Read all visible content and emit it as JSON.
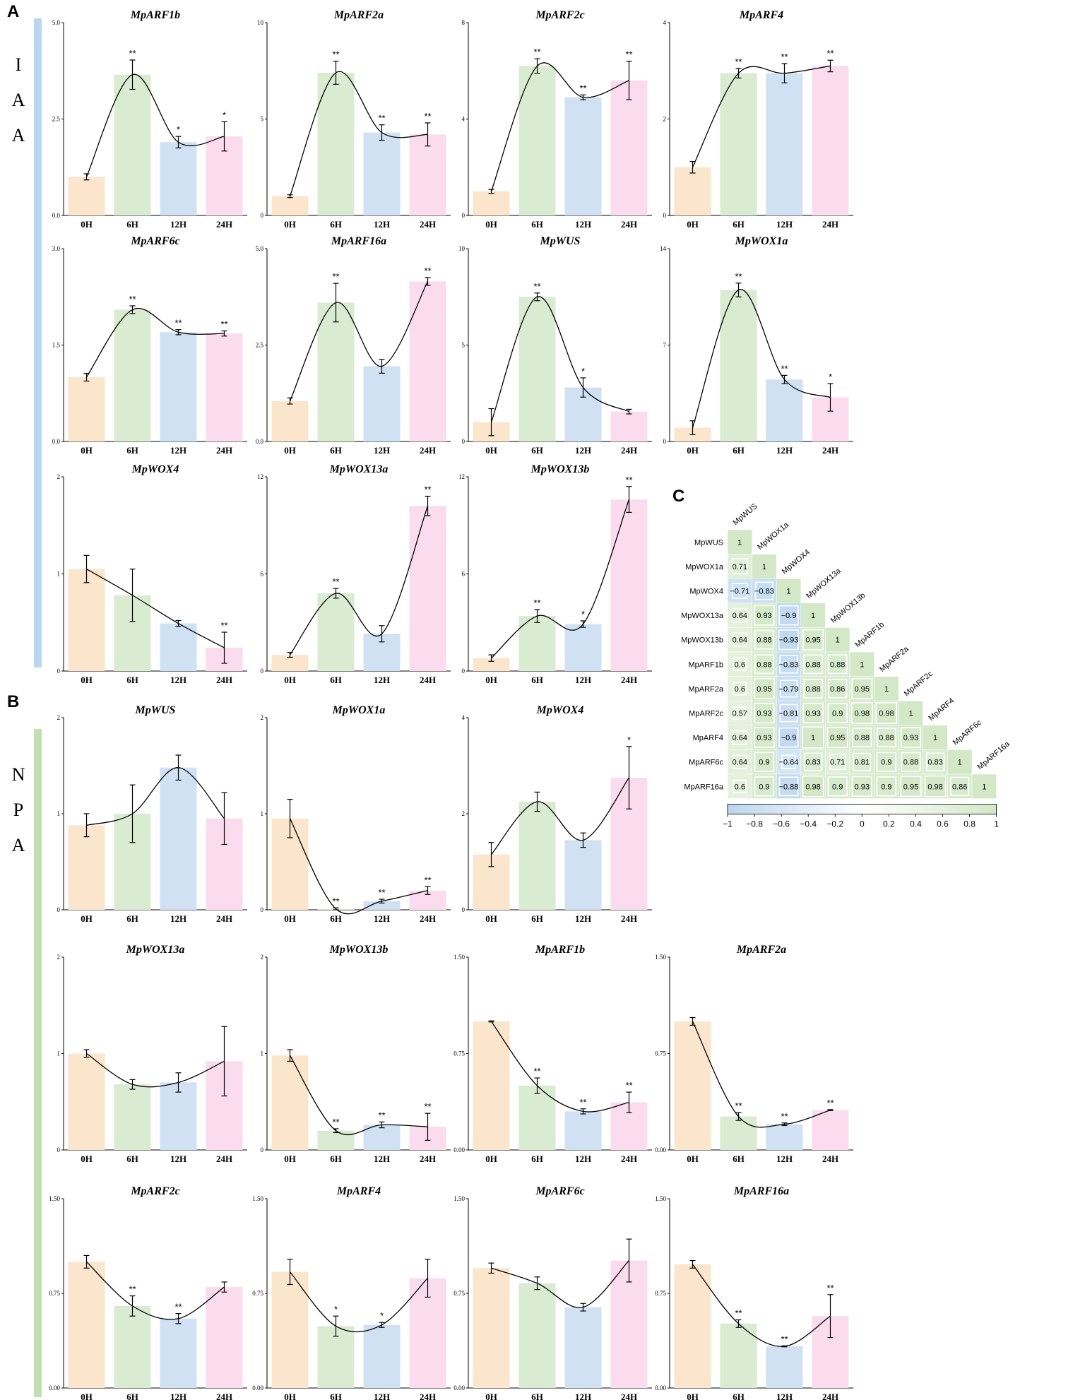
{
  "colors": {
    "bar_0H": "#fbe5cc",
    "bar_6H": "#d9ebd1",
    "bar_12H": "#cfe1f3",
    "bar_24H": "#fbdcef",
    "iaa_sidebar": "#b9d7ee",
    "npa_sidebar": "#c2dfb3",
    "hm_positive": "#d3e8c7",
    "hm_negative": "#bcd6ee",
    "line": "#000000"
  },
  "panels": {
    "A": {
      "letter": "A",
      "side_text": [
        "I",
        "A",
        "A"
      ]
    },
    "B": {
      "letter": "B",
      "side_text": [
        "N",
        "P",
        "A"
      ]
    },
    "C": {
      "letter": "C"
    }
  },
  "chart_data": [
    {
      "type": "bar",
      "panel": "A",
      "title": "MpARF1b",
      "categories": [
        "0H",
        "6H",
        "12H",
        "24H"
      ],
      "values": [
        1.0,
        3.65,
        1.9,
        2.05
      ],
      "errors": [
        0.08,
        0.38,
        0.15,
        0.38
      ],
      "ylim": [
        0,
        5.0
      ],
      "yticks": [
        "0.0",
        "2.5",
        "5.0"
      ],
      "sig": [
        "",
        "**",
        "*",
        "*"
      ]
    },
    {
      "type": "bar",
      "panel": "A",
      "title": "MpARF2a",
      "categories": [
        "0H",
        "6H",
        "12H",
        "24H"
      ],
      "values": [
        1.0,
        7.4,
        4.3,
        4.2
      ],
      "errors": [
        0.07,
        0.6,
        0.4,
        0.6
      ],
      "ylim": [
        0,
        10
      ],
      "yticks": [
        "0",
        "5",
        "10"
      ],
      "sig": [
        "",
        "**",
        "**",
        "**"
      ]
    },
    {
      "type": "bar",
      "panel": "A",
      "title": "MpARF2c",
      "categories": [
        "0H",
        "6H",
        "12H",
        "24H"
      ],
      "values": [
        1.0,
        6.2,
        4.9,
        5.6
      ],
      "errors": [
        0.08,
        0.3,
        0.1,
        0.8
      ],
      "ylim": [
        0,
        8
      ],
      "yticks": [
        "0",
        "4",
        "8"
      ],
      "sig": [
        "",
        "**",
        "**",
        "**"
      ]
    },
    {
      "type": "bar",
      "panel": "A",
      "title": "MpARF4",
      "categories": [
        "0H",
        "6H",
        "12H",
        "24H"
      ],
      "values": [
        1.0,
        2.95,
        2.95,
        3.1
      ],
      "errors": [
        0.12,
        0.1,
        0.2,
        0.12
      ],
      "ylim": [
        0,
        4
      ],
      "yticks": [
        "0",
        "2",
        "4"
      ],
      "sig": [
        "",
        "**",
        "**",
        "**"
      ]
    },
    {
      "type": "bar",
      "panel": "A",
      "title": "MpARF6c",
      "categories": [
        "0H",
        "6H",
        "12H",
        "24H"
      ],
      "values": [
        1.0,
        2.05,
        1.7,
        1.68
      ],
      "errors": [
        0.06,
        0.06,
        0.04,
        0.04
      ],
      "ylim": [
        0,
        3.0
      ],
      "yticks": [
        "0.0",
        "1.5",
        "3.0"
      ],
      "sig": [
        "",
        "**",
        "**",
        "**"
      ]
    },
    {
      "type": "bar",
      "panel": "A",
      "title": "MpARF16a",
      "categories": [
        "0H",
        "6H",
        "12H",
        "24H"
      ],
      "values": [
        1.05,
        3.6,
        1.95,
        4.15
      ],
      "errors": [
        0.08,
        0.5,
        0.18,
        0.1
      ],
      "ylim": [
        0,
        5.0
      ],
      "yticks": [
        "0.0",
        "2.5",
        "5.0"
      ],
      "sig": [
        "",
        "**",
        "",
        "**"
      ]
    },
    {
      "type": "bar",
      "panel": "A",
      "title": "MpWUS",
      "categories": [
        "0H",
        "6H",
        "12H",
        "24H"
      ],
      "values": [
        1.0,
        7.5,
        2.8,
        1.55
      ],
      "errors": [
        0.7,
        0.2,
        0.5,
        0.12
      ],
      "ylim": [
        0,
        10
      ],
      "yticks": [
        "0",
        "5",
        "10"
      ],
      "sig": [
        "",
        "**",
        "*",
        ""
      ]
    },
    {
      "type": "bar",
      "panel": "A",
      "title": "MpWOX1a",
      "categories": [
        "0H",
        "6H",
        "12H",
        "24H"
      ],
      "values": [
        1.0,
        11.0,
        4.5,
        3.2
      ],
      "errors": [
        0.5,
        0.5,
        0.3,
        1.0
      ],
      "ylim": [
        0,
        14
      ],
      "yticks": [
        "0",
        "7",
        "14"
      ],
      "sig": [
        "",
        "**",
        "**",
        "*"
      ]
    },
    {
      "type": "bar",
      "panel": "A",
      "title": "MpWOX4",
      "categories": [
        "0H",
        "6H",
        "12H",
        "24H"
      ],
      "values": [
        1.05,
        0.78,
        0.49,
        0.24
      ],
      "errors": [
        0.14,
        0.27,
        0.03,
        0.16
      ],
      "ylim": [
        0,
        2
      ],
      "yticks": [
        "0",
        "1",
        "2"
      ],
      "sig": [
        "",
        "",
        "",
        "**"
      ]
    },
    {
      "type": "bar",
      "panel": "A",
      "title": "MpWOX13a",
      "categories": [
        "0H",
        "6H",
        "12H",
        "24H"
      ],
      "values": [
        1.0,
        4.8,
        2.3,
        10.2
      ],
      "errors": [
        0.15,
        0.3,
        0.5,
        0.6
      ],
      "ylim": [
        0,
        12
      ],
      "yticks": [
        "0",
        "6",
        "12"
      ],
      "sig": [
        "",
        "**",
        "",
        "**"
      ]
    },
    {
      "type": "bar",
      "panel": "A",
      "title": "MpWOX13b",
      "categories": [
        "0H",
        "6H",
        "12H",
        "24H"
      ],
      "values": [
        0.8,
        3.4,
        2.9,
        10.6
      ],
      "errors": [
        0.2,
        0.4,
        0.2,
        0.8
      ],
      "ylim": [
        0,
        12
      ],
      "yticks": [
        "0",
        "6",
        "12"
      ],
      "sig": [
        "",
        "**",
        "*",
        "**"
      ]
    },
    {
      "type": "bar",
      "panel": "B",
      "title": "MpWUS",
      "categories": [
        "0H",
        "6H",
        "12H",
        "24H"
      ],
      "values": [
        0.88,
        1.0,
        1.48,
        0.95
      ],
      "errors": [
        0.12,
        0.3,
        0.13,
        0.27
      ],
      "ylim": [
        0,
        2
      ],
      "yticks": [
        "0",
        "1",
        "2"
      ],
      "sig": [
        "",
        "",
        "",
        ""
      ]
    },
    {
      "type": "bar",
      "panel": "B",
      "title": "MpWOX1a",
      "categories": [
        "0H",
        "6H",
        "12H",
        "24H"
      ],
      "values": [
        0.95,
        0.01,
        0.09,
        0.2
      ],
      "errors": [
        0.2,
        0.01,
        0.02,
        0.04
      ],
      "ylim": [
        0,
        2
      ],
      "yticks": [
        "0",
        "1",
        "2"
      ],
      "sig": [
        "",
        "**",
        "**",
        "**"
      ]
    },
    {
      "type": "bar",
      "panel": "B",
      "title": "MpWOX4",
      "categories": [
        "0H",
        "6H",
        "12H",
        "24H"
      ],
      "values": [
        1.15,
        2.25,
        1.45,
        2.75
      ],
      "errors": [
        0.25,
        0.2,
        0.15,
        0.65
      ],
      "ylim": [
        0,
        4
      ],
      "yticks": [
        "0",
        "2",
        "4"
      ],
      "sig": [
        "",
        "",
        "",
        "*"
      ]
    },
    {
      "type": "bar",
      "panel": "B",
      "title": "MpWOX13a",
      "categories": [
        "0H",
        "6H",
        "12H",
        "24H"
      ],
      "values": [
        1.0,
        0.68,
        0.7,
        0.92
      ],
      "errors": [
        0.04,
        0.05,
        0.1,
        0.36
      ],
      "ylim": [
        0,
        2
      ],
      "yticks": [
        "0",
        "1",
        "2"
      ],
      "sig": [
        "",
        "",
        "",
        ""
      ]
    },
    {
      "type": "bar",
      "panel": "B",
      "title": "MpWOX13b",
      "categories": [
        "0H",
        "6H",
        "12H",
        "24H"
      ],
      "values": [
        0.98,
        0.2,
        0.26,
        0.24
      ],
      "errors": [
        0.06,
        0.02,
        0.03,
        0.14
      ],
      "ylim": [
        0,
        2
      ],
      "yticks": [
        "0",
        "1",
        "2"
      ],
      "sig": [
        "",
        "**",
        "**",
        "**"
      ]
    },
    {
      "type": "bar",
      "panel": "B",
      "title": "MpARF1b",
      "categories": [
        "0H",
        "6H",
        "12H",
        "24H"
      ],
      "values": [
        1.0,
        0.5,
        0.3,
        0.37
      ],
      "errors": [
        0.004,
        0.06,
        0.02,
        0.08
      ],
      "ylim": [
        0,
        1.5
      ],
      "yticks": [
        "0.00",
        "0.75",
        "1.50"
      ],
      "sig": [
        "",
        "**",
        "**",
        "**"
      ]
    },
    {
      "type": "bar",
      "panel": "B",
      "title": "MpARF2a",
      "categories": [
        "0H",
        "6H",
        "12H",
        "24H"
      ],
      "values": [
        1.0,
        0.26,
        0.2,
        0.31
      ],
      "errors": [
        0.03,
        0.03,
        0.01,
        0.004
      ],
      "ylim": [
        0,
        1.5
      ],
      "yticks": [
        "0.00",
        "0.75",
        "1.50"
      ],
      "sig": [
        "",
        "**",
        "**",
        "**"
      ]
    },
    {
      "type": "bar",
      "panel": "B",
      "title": "MpARF2c",
      "categories": [
        "0H",
        "6H",
        "12H",
        "24H"
      ],
      "values": [
        1.0,
        0.65,
        0.55,
        0.8
      ],
      "errors": [
        0.05,
        0.08,
        0.04,
        0.04
      ],
      "ylim": [
        0,
        1.5
      ],
      "yticks": [
        "0.00",
        "0.75",
        "1.50"
      ],
      "sig": [
        "",
        "**",
        "**",
        ""
      ]
    },
    {
      "type": "bar",
      "panel": "B",
      "title": "MpARF4",
      "categories": [
        "0H",
        "6H",
        "12H",
        "24H"
      ],
      "values": [
        0.92,
        0.49,
        0.5,
        0.87
      ],
      "errors": [
        0.1,
        0.08,
        0.02,
        0.15
      ],
      "ylim": [
        0,
        1.5
      ],
      "yticks": [
        "0.00",
        "0.75",
        "1.50"
      ],
      "sig": [
        "",
        "*",
        "*",
        ""
      ]
    },
    {
      "type": "bar",
      "panel": "B",
      "title": "MpARF6c",
      "categories": [
        "0H",
        "6H",
        "12H",
        "24H"
      ],
      "values": [
        0.95,
        0.83,
        0.64,
        1.01
      ],
      "errors": [
        0.04,
        0.05,
        0.03,
        0.17
      ],
      "ylim": [
        0,
        1.5
      ],
      "yticks": [
        "0.00",
        "0.75",
        "1.50"
      ],
      "sig": [
        "",
        "",
        "",
        ""
      ]
    },
    {
      "type": "bar",
      "panel": "B",
      "title": "MpARF16a",
      "categories": [
        "0H",
        "6H",
        "12H",
        "24H"
      ],
      "values": [
        0.98,
        0.51,
        0.33,
        0.57
      ],
      "errors": [
        0.03,
        0.03,
        0.004,
        0.17
      ],
      "ylim": [
        0,
        1.5
      ],
      "yticks": [
        "0.00",
        "0.75",
        "1.50"
      ],
      "sig": [
        "",
        "**",
        "**",
        "**"
      ]
    },
    {
      "type": "heatmap",
      "panel": "C",
      "title": "",
      "labels": [
        "MpWUS",
        "MpWOX1a",
        "MpWOX4",
        "MpWOX13a",
        "MpWOX13b",
        "MpARF1b",
        "MpARF2a",
        "MpARF2c",
        "MpARF4",
        "MpARF6c",
        "MpARF16a"
      ],
      "values": [
        [
          "1"
        ],
        [
          "0.71",
          "1"
        ],
        [
          "−0.71",
          "−0.83",
          "1"
        ],
        [
          "0.64",
          "0.93",
          "−0.9",
          "1"
        ],
        [
          "0.64",
          "0.88",
          "−0.93",
          "0.95",
          "1"
        ],
        [
          "0.6",
          "0.88",
          "−0.83",
          "0.88",
          "0.88",
          "1"
        ],
        [
          "0.6",
          "0.95",
          "−0.79",
          "0.88",
          "0.86",
          "0.95",
          "1"
        ],
        [
          "0.57",
          "0.93",
          "−0.81",
          "0.93",
          "0.9",
          "0.98",
          "0.98",
          "1"
        ],
        [
          "0.64",
          "0.93",
          "−0.9",
          "1",
          "0.95",
          "0.88",
          "0.88",
          "0.93",
          "1"
        ],
        [
          "0.64",
          "0.9",
          "−0.64",
          "0.83",
          "0.71",
          "0.81",
          "0.9",
          "0.88",
          "0.83",
          "1"
        ],
        [
          "0.6",
          "0.9",
          "−0.88",
          "0.98",
          "0.9",
          "0.93",
          "0.9",
          "0.95",
          "0.98",
          "0.86",
          "1"
        ]
      ],
      "colorbar_ticks": [
        "−1",
        "−0.8",
        "−0.6",
        "−0.4",
        "−0.2",
        "0",
        "0.2",
        "0.4",
        "0.6",
        "0.8",
        "1"
      ],
      "colorbar_range": [
        -1,
        1
      ]
    }
  ]
}
